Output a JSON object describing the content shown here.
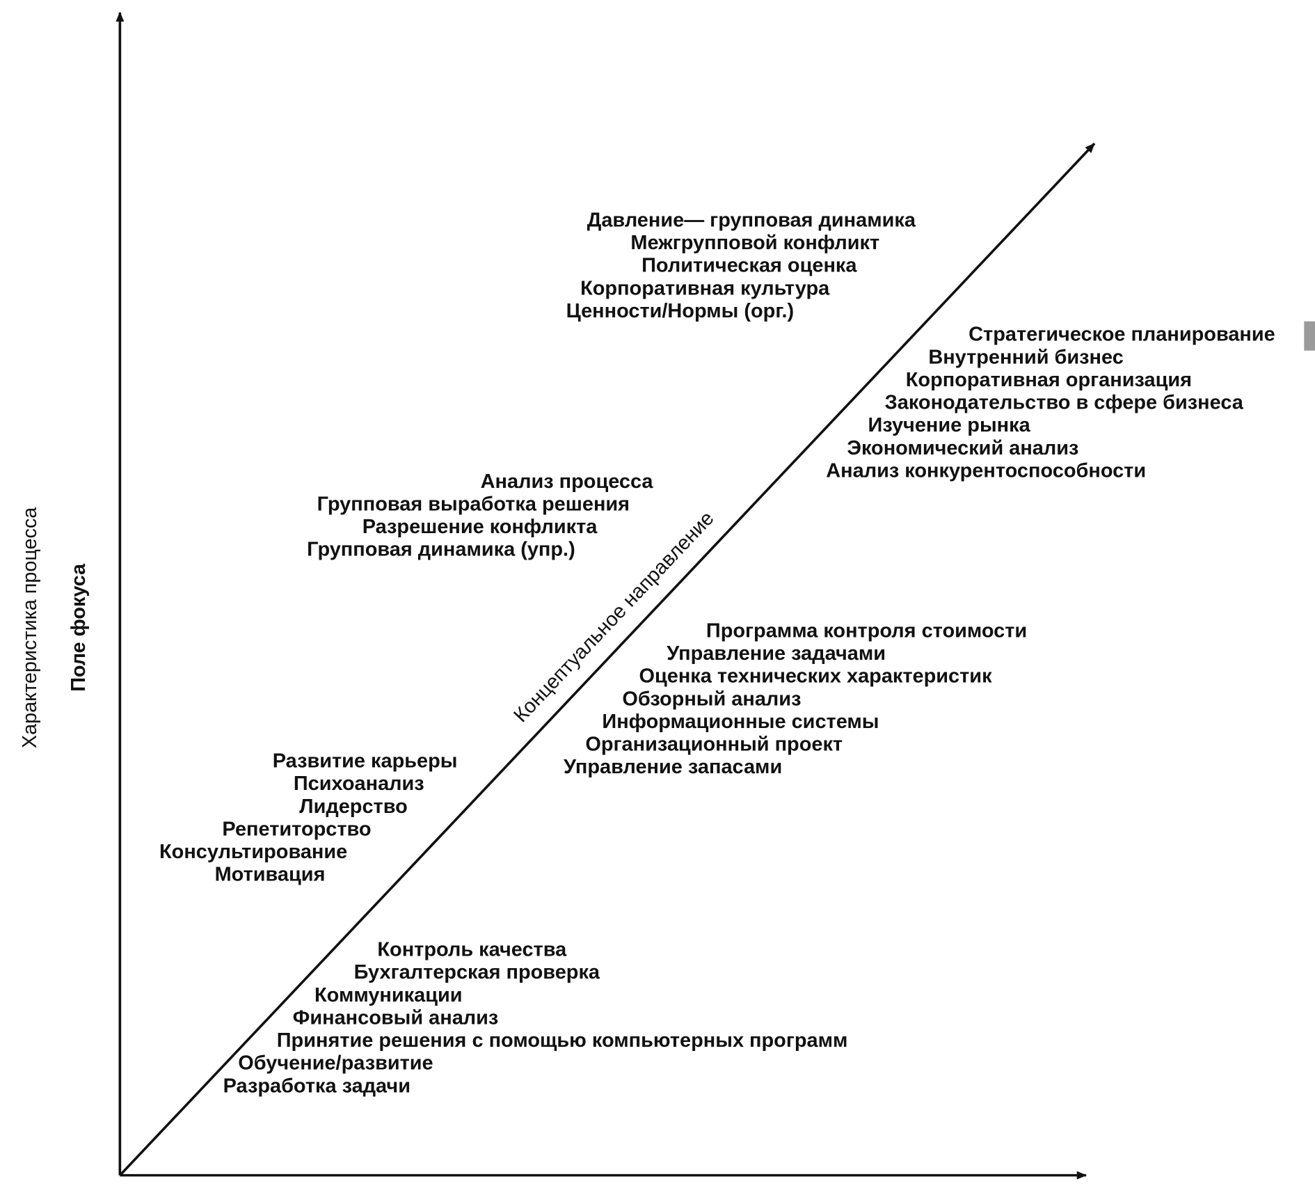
{
  "axes": {
    "y_label": "Характеристика процесса",
    "y_sublabel": "Поле фокуса",
    "diagonal_label": "Концептуальное направление"
  },
  "groups": [
    {
      "items": [
        "Давление— групповая динамика",
        "Межгрупповой конфликт",
        "Политическая оценка",
        "Корпоративная культура",
        "Ценности/Нормы (орг.)"
      ]
    },
    {
      "items": [
        "Стратегическое планирование",
        "Внутренний бизнес",
        "Корпоративная организация",
        "Законодательство в сфере бизнеса",
        "Изучение рынка",
        "Экономический анализ",
        "Анализ конкурентоспособности"
      ]
    },
    {
      "items": [
        "Анализ процесса",
        "Групповая выработка решения",
        "Разрешение конфликта",
        "Групповая динамика (упр.)"
      ]
    },
    {
      "items": [
        "Программа контроля стоимости",
        "Управление задачами",
        "Оценка технических характеристик",
        "Обзорный анализ",
        "Информационные системы",
        "Организационный проект",
        "Управление запасами"
      ]
    },
    {
      "items": [
        "Развитие карьеры",
        "Психоанализ",
        "Лидерство",
        "Репетиторство",
        "Консультирование",
        "Мотивация"
      ]
    },
    {
      "items": [
        "Контроль качества",
        "Бухгалтерская проверка",
        "Коммуникации",
        "Финансовый анализ",
        "Принятие решения с помощью компьютерных программ",
        "Обучение/развитие",
        "Разработка задачи"
      ]
    }
  ]
}
